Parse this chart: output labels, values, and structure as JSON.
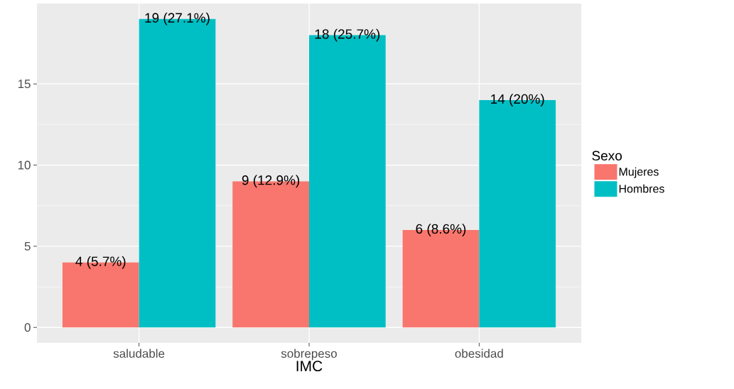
{
  "chart_data": {
    "type": "bar",
    "xlabel": "IMC",
    "legend_title": "Sexo",
    "categories": [
      "saludable",
      "sobrepeso",
      "obesidad"
    ],
    "series": [
      {
        "name": "Mujeres",
        "color": "#F8766D",
        "values": [
          4,
          9,
          6
        ],
        "value_labels": [
          "4 (5.7%)",
          "9 (12.9%)",
          "6 (8.6%)"
        ]
      },
      {
        "name": "Hombres",
        "color": "#00BFC4",
        "values": [
          19,
          18,
          14
        ],
        "value_labels": [
          "19 (27.1%)",
          "18 (25.7%)",
          "14 (20%)"
        ]
      }
    ],
    "ylim": [
      -0.95,
      19.95
    ],
    "yticks": [
      0,
      5,
      10,
      15
    ],
    "grid": true,
    "legend": "right"
  }
}
